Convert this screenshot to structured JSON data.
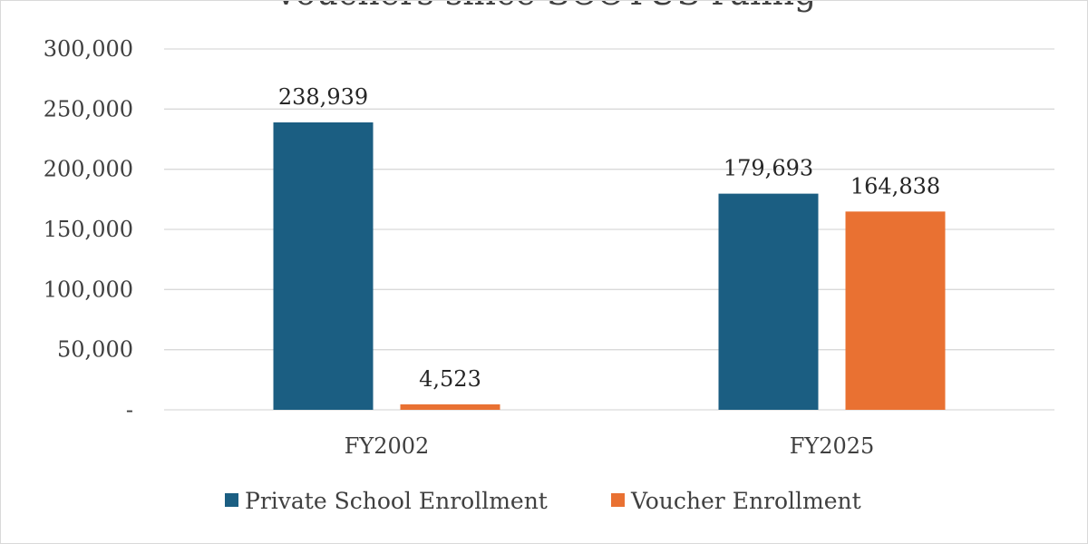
{
  "chart_data": {
    "type": "bar",
    "title": "Vouchers since SCOTUS ruling",
    "categories": [
      "FY2002",
      "FY2025"
    ],
    "series": [
      {
        "name": "Private School Enrollment",
        "values": [
          238939,
          179693
        ],
        "labels": [
          "238,939",
          "179,693"
        ],
        "color": "#1b5e82"
      },
      {
        "name": "Voucher Enrollment",
        "values": [
          4523,
          164838
        ],
        "labels": [
          "4,523",
          "164,838"
        ],
        "color": "#e97132"
      }
    ],
    "ylim": [
      0,
      300000
    ],
    "yticks": [
      0,
      50000,
      100000,
      150000,
      200000,
      250000,
      300000
    ],
    "ytick_labels": [
      "-",
      "50,000",
      "100,000",
      "150,000",
      "200,000",
      "250,000",
      "300,000"
    ],
    "xlabel": "",
    "ylabel": "",
    "grid": true,
    "legend": "bottom"
  }
}
